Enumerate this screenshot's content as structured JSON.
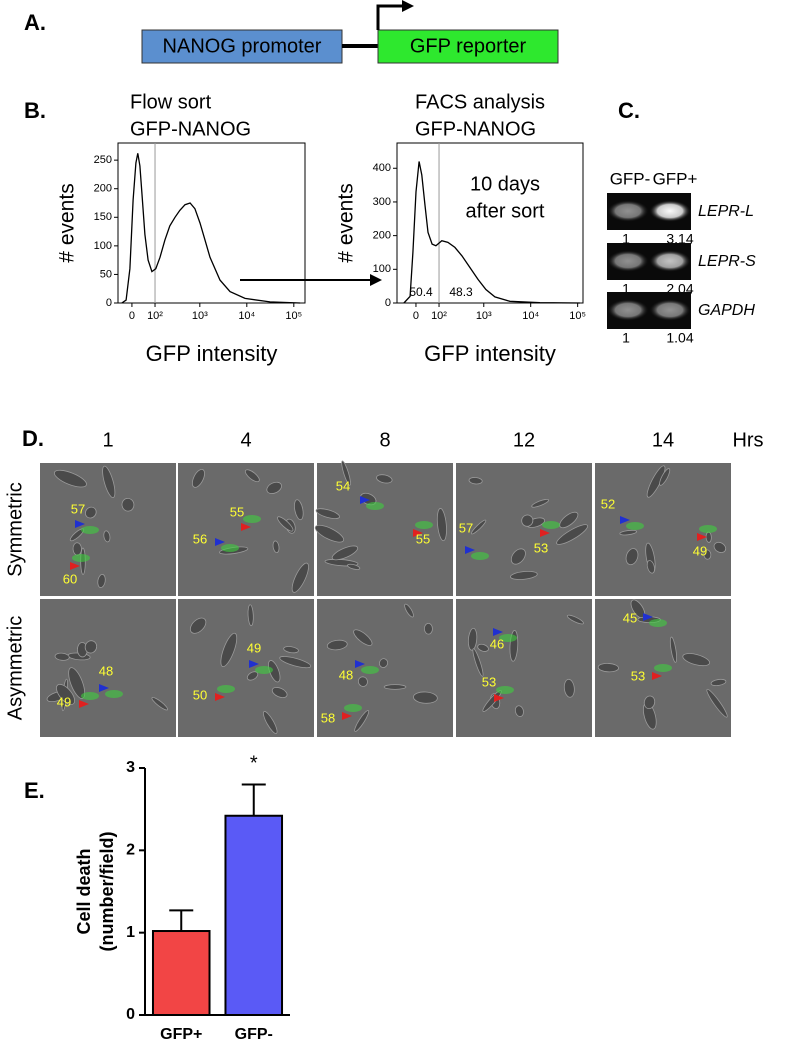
{
  "panel_a": {
    "label": "A.",
    "promoter": "NANOG promoter",
    "reporter": "GFP reporter"
  },
  "panel_b": {
    "label": "B."
  },
  "panel_c": {
    "label": "C.",
    "columns": [
      "GFP-",
      "GFP+"
    ],
    "genes": [
      {
        "name": "LEPR-L",
        "values": [
          1,
          3.14
        ]
      },
      {
        "name": "LEPR-S",
        "values": [
          1,
          2.04
        ]
      },
      {
        "name": "GAPDH",
        "values": [
          1,
          1.04
        ]
      }
    ]
  },
  "panel_d": {
    "label": "D.",
    "times": [
      1,
      4,
      8,
      12,
      14
    ],
    "time_unit": "Hrs",
    "rows": [
      {
        "name": "Symmetric",
        "cells": [
          [
            57,
            60
          ],
          [
            56,
            55
          ],
          [
            54,
            55
          ],
          [
            57,
            53
          ],
          [
            52,
            49
          ]
        ]
      },
      {
        "name": "Asymmetric",
        "cells": [
          [
            48,
            49
          ],
          [
            49,
            50
          ],
          [
            48,
            58
          ],
          [
            46,
            53
          ],
          [
            45,
            53
          ]
        ]
      }
    ]
  },
  "panel_e": {
    "label": "E."
  },
  "chart_data": [
    {
      "type": "line",
      "title": [
        "Flow sort",
        "GFP-NANOG"
      ],
      "x_label": "GFP intensity",
      "y_label": "# events",
      "x_scale": "biexponential",
      "color": "#000000",
      "x": [
        -37,
        -21,
        -7,
        4,
        14,
        21,
        29,
        37,
        49,
        63,
        82,
        105,
        133,
        174,
        225,
        292,
        372,
        482,
        619,
        785,
        1008,
        1289,
        1649,
        2686,
        4385,
        9144,
        31100,
        136000
      ],
      "values": [
        0,
        5,
        60,
        180,
        245,
        262,
        240,
        190,
        120,
        75,
        55,
        60,
        80,
        110,
        135,
        150,
        162,
        172,
        175,
        165,
        140,
        110,
        80,
        40,
        20,
        8,
        2,
        0
      ],
      "gate": 100,
      "xlim": [
        -53,
        173000
      ],
      "xticks": [
        0,
        {
          "value": 100,
          "label": "10²"
        },
        {
          "value": 1000,
          "label": "10³"
        },
        {
          "value": 10000,
          "label": "10⁴"
        },
        {
          "value": 100000,
          "label": "10⁵"
        }
      ],
      "ylim": [
        0,
        280
      ],
      "yticks": [
        0,
        50,
        100,
        150,
        200,
        250
      ]
    },
    {
      "type": "line",
      "title": [
        "FACS analysis",
        "GFP-NANOG"
      ],
      "x_label": "GFP intensity",
      "y_label": "# events",
      "x_scale": "biexponential",
      "color": "#000000",
      "annotation": [
        "10 days",
        "after sort"
      ],
      "region_labels": [
        50.4,
        48.3
      ],
      "x": [
        -45,
        -21,
        -11,
        0,
        11,
        21,
        33,
        45,
        63,
        82,
        118,
        165,
        238,
        339,
        507,
        751,
        1108,
        1728,
        3613,
        15700,
        111600
      ],
      "values": [
        0,
        20,
        150,
        330,
        420,
        380,
        290,
        210,
        175,
        170,
        185,
        180,
        165,
        140,
        105,
        70,
        40,
        18,
        5,
        1,
        0
      ],
      "gate": 100,
      "xlim": [
        -77,
        130000
      ],
      "xticks": [
        0,
        {
          "value": 100,
          "label": "10²"
        },
        {
          "value": 1000,
          "label": "10³"
        },
        {
          "value": 10000,
          "label": "10⁴"
        },
        {
          "value": 100000,
          "label": "10⁵"
        }
      ],
      "ylim": [
        0,
        475
      ],
      "yticks": [
        0,
        100,
        200,
        300,
        400
      ]
    },
    {
      "type": "bar",
      "categories": [
        "GFP+",
        "GFP-"
      ],
      "values": [
        1.02,
        2.42
      ],
      "errors": [
        0.25,
        0.38
      ],
      "colors": [
        "#f24545",
        "#5a5af6"
      ],
      "y_label": [
        "Cell death",
        "(number/field)"
      ],
      "annotation": "*",
      "ylim": [
        0,
        3
      ],
      "yticks": [
        0,
        1,
        2,
        3
      ]
    }
  ]
}
